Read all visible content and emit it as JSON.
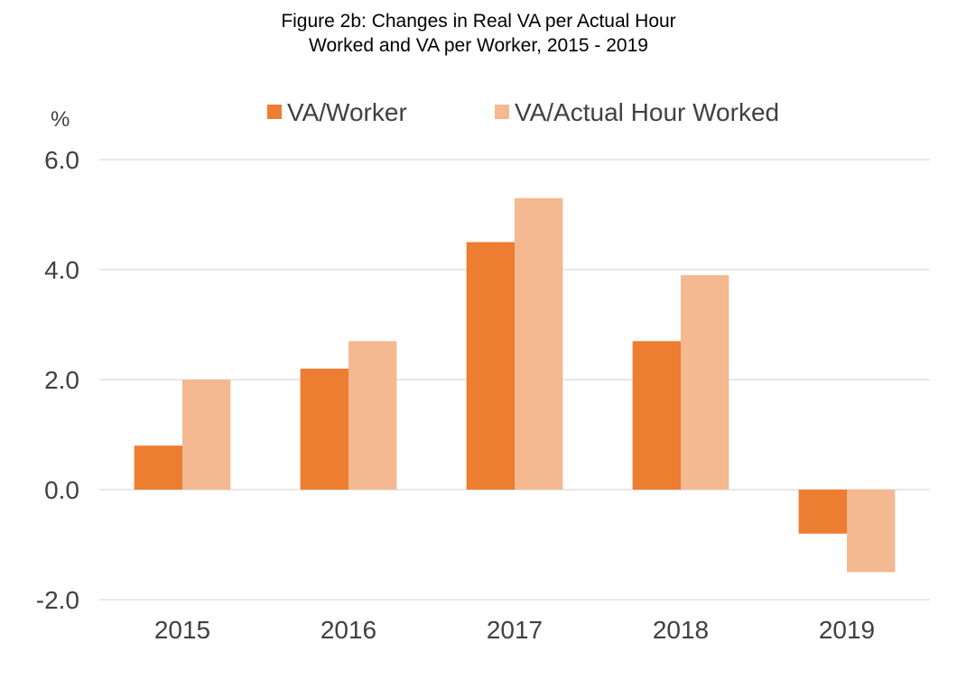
{
  "chart_data": {
    "type": "bar",
    "title_lines": [
      "Figure 2b: Changes in Real VA per Actual Hour",
      "Worked and VA per Worker, 2015 - 2019"
    ],
    "y_unit": "%",
    "categories": [
      "2015",
      "2016",
      "2017",
      "2018",
      "2019"
    ],
    "series": [
      {
        "name": "VA/Worker",
        "color": "#ED7D31",
        "values": [
          0.8,
          2.2,
          4.5,
          2.7,
          -0.8
        ]
      },
      {
        "name": "VA/Actual Hour Worked",
        "color": "#F4B990",
        "values": [
          2.0,
          2.7,
          5.3,
          3.9,
          -1.5
        ]
      }
    ],
    "ylim": [
      -2.0,
      6.0
    ],
    "yticks": [
      6.0,
      4.0,
      2.0,
      0.0,
      -2.0
    ],
    "ytick_labels": [
      "6.0",
      "4.0",
      "2.0",
      "0.0",
      "-2.0"
    ],
    "grid": true,
    "gridline_color": "#D9D9D9",
    "legend_position": "top"
  }
}
